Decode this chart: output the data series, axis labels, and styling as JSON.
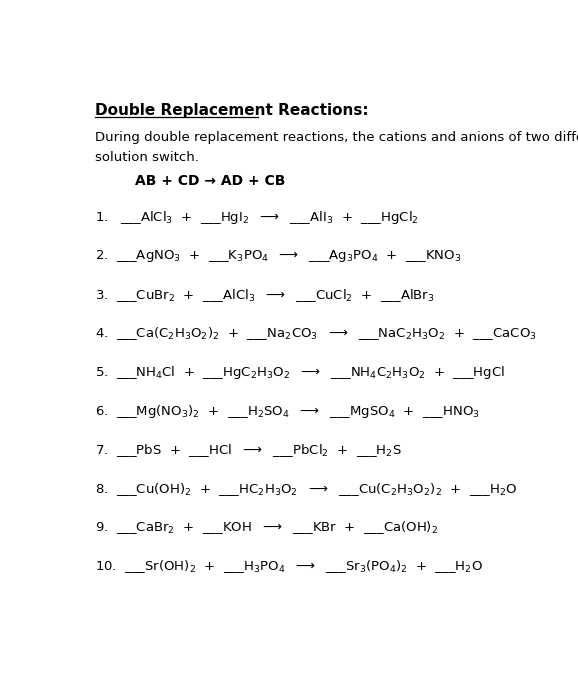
{
  "title": "Double Replacement Reactions:",
  "intro_line1": "During double replacement reactions, the cations and anions of two different compounds in",
  "intro_line2": "solution switch.",
  "formula_text": "AB + CD → AD + CB",
  "bg_color": "#ffffff",
  "text_color": "#000000",
  "title_fontsize": 11,
  "body_fontsize": 9.5,
  "reaction_fontsize": 9.5
}
